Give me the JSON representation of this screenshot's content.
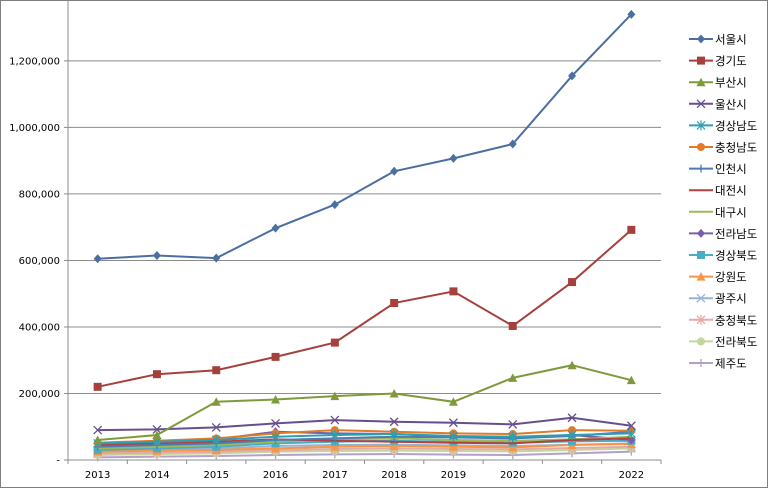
{
  "chart_data": {
    "type": "line",
    "title": "",
    "xlabel": "",
    "ylabel": "",
    "ylim": [
      0,
      1350000
    ],
    "y_ticks": [
      0,
      200000,
      400000,
      600000,
      800000,
      1000000,
      1200000
    ],
    "y_tick_labels": [
      "-",
      "200,000",
      "400,000",
      "600,000",
      "800,000",
      "1,000,000",
      "1,200,000"
    ],
    "grid": "horizontal",
    "legend_position": "right",
    "categories": [
      "2013",
      "2014",
      "2015",
      "2016",
      "2017",
      "2018",
      "2019",
      "2020",
      "2021",
      "2022"
    ],
    "series": [
      {
        "name": "서울시",
        "color": "#4a6fa0",
        "marker": "diamond",
        "values": [
          605000,
          615000,
          607000,
          697000,
          768000,
          868000,
          907000,
          950000,
          1155000,
          1340000
        ]
      },
      {
        "name": "경기도",
        "color": "#a6403c",
        "marker": "square",
        "values": [
          220000,
          258000,
          270000,
          310000,
          353000,
          472000,
          507000,
          403000,
          535000,
          692000
        ]
      },
      {
        "name": "부산시",
        "color": "#7f9a3c",
        "marker": "triangle",
        "values": [
          60000,
          75000,
          175000,
          182000,
          192000,
          200000,
          175000,
          247000,
          285000,
          240000
        ]
      },
      {
        "name": "울산시",
        "color": "#664f8c",
        "marker": "x",
        "values": [
          90000,
          92000,
          98000,
          110000,
          120000,
          115000,
          112000,
          107000,
          127000,
          103000
        ]
      },
      {
        "name": "경상남도",
        "color": "#2d9fb3",
        "marker": "star",
        "values": [
          50000,
          55000,
          60000,
          70000,
          75000,
          78000,
          72000,
          70000,
          75000,
          80000
        ]
      },
      {
        "name": "충청남도",
        "color": "#e07b2a",
        "marker": "circle",
        "values": [
          52000,
          58000,
          65000,
          80000,
          90000,
          85000,
          80000,
          78000,
          90000,
          88000
        ]
      },
      {
        "name": "인천시",
        "color": "#4f7ab8",
        "marker": "plus",
        "values": [
          40000,
          45000,
          50000,
          60000,
          65000,
          70000,
          68000,
          65000,
          72000,
          85000
        ]
      },
      {
        "name": "대전시",
        "color": "#b3413f",
        "marker": "none",
        "values": [
          45000,
          48000,
          55000,
          62000,
          58000,
          55000,
          52000,
          50000,
          60000,
          65000
        ]
      },
      {
        "name": "대구시",
        "color": "#9bbb59",
        "marker": "none",
        "values": [
          35000,
          40000,
          45000,
          55000,
          62000,
          65000,
          60000,
          58000,
          62000,
          70000
        ]
      },
      {
        "name": "전라남도",
        "color": "#7a5fa8",
        "marker": "diamond",
        "values": [
          48000,
          52000,
          62000,
          85000,
          80000,
          78000,
          70000,
          68000,
          75000,
          60000
        ]
      },
      {
        "name": "경상북도",
        "color": "#4bacc6",
        "marker": "square",
        "values": [
          30000,
          35000,
          40000,
          50000,
          55000,
          58000,
          55000,
          52000,
          56000,
          58000
        ]
      },
      {
        "name": "강원도",
        "color": "#f79646",
        "marker": "triangle",
        "values": [
          25000,
          28000,
          30000,
          35000,
          40000,
          42000,
          40000,
          38000,
          45000,
          48000
        ]
      },
      {
        "name": "광주시",
        "color": "#95b3d7",
        "marker": "x",
        "values": [
          28000,
          30000,
          35000,
          42000,
          45000,
          46000,
          44000,
          42000,
          46000,
          50000
        ]
      },
      {
        "name": "충청북도",
        "color": "#e6a9a9",
        "marker": "star",
        "values": [
          20000,
          22000,
          25000,
          30000,
          33000,
          35000,
          33000,
          32000,
          36000,
          40000
        ]
      },
      {
        "name": "전라북도",
        "color": "#c3d69b",
        "marker": "circle",
        "values": [
          15000,
          18000,
          20000,
          25000,
          27000,
          28000,
          27000,
          26000,
          30000,
          35000
        ]
      },
      {
        "name": "제주도",
        "color": "#b2a1c7",
        "marker": "plus",
        "values": [
          8000,
          10000,
          12000,
          15000,
          17000,
          18000,
          16000,
          15000,
          20000,
          25000
        ]
      }
    ]
  }
}
